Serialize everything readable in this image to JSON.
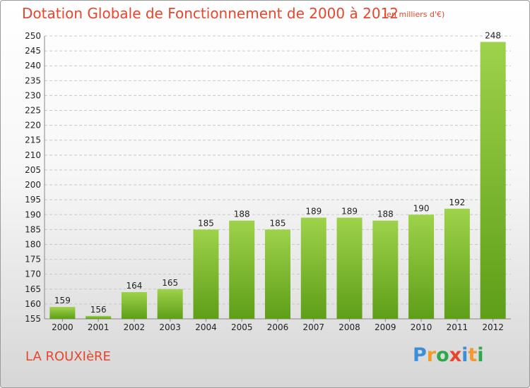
{
  "title": "Dotation Globale de Fonctionnement de 2000 à 2012",
  "subtitle": "(en milliers d'€)",
  "place_name": "LA ROUXIèRE",
  "logo": {
    "text": "Proxiti",
    "letters": [
      {
        "char": "P",
        "color": "#3a8fd8"
      },
      {
        "char": "r",
        "color": "#f29a2e"
      },
      {
        "char": "o",
        "color": "#2ea84a"
      },
      {
        "char": "x",
        "color": "#e8452c"
      },
      {
        "char": "i",
        "color": "#3a8fd8"
      },
      {
        "char": "t",
        "color": "#f29a2e"
      },
      {
        "char": "i",
        "color": "#2ea84a"
      }
    ]
  },
  "colors": {
    "title": "#e8452c",
    "bar_top": "#9ed24a",
    "bar_bottom": "#5e9e18",
    "grid": "#c8c8c8",
    "axis_text": "#222222"
  },
  "chart_data": {
    "type": "bar",
    "categories": [
      "2000",
      "2001",
      "2002",
      "2003",
      "2004",
      "2005",
      "2006",
      "2007",
      "2008",
      "2009",
      "2010",
      "2011",
      "2012"
    ],
    "values": [
      159,
      156,
      164,
      165,
      185,
      188,
      185,
      189,
      189,
      188,
      190,
      192,
      248
    ],
    "ylim": [
      155,
      250
    ],
    "yticks": [
      155,
      160,
      165,
      170,
      175,
      180,
      185,
      190,
      195,
      200,
      205,
      210,
      215,
      220,
      225,
      230,
      235,
      240,
      245,
      250
    ],
    "grid": true,
    "xlabel": "",
    "ylabel": ""
  }
}
